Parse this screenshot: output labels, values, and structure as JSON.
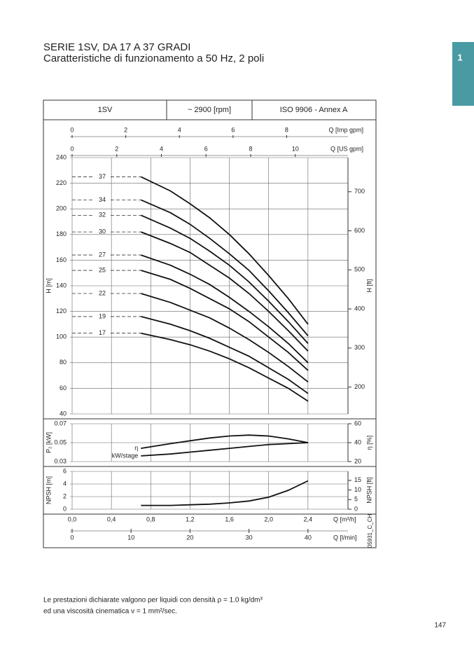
{
  "header": {
    "title": "SERIE 1SV, DA 17 A 37 GRADI",
    "subtitle": "Caratteristiche di funzionamento a 50 Hz, 2 poli"
  },
  "tab": "1",
  "chart_header": [
    "1SV",
    "~ 2900 [rpm]",
    "ISO 9906 - Annex A"
  ],
  "chart_code": "05931_C_CH",
  "chart_data": [
    {
      "type": "line",
      "series_labels": "leader",
      "x": [
        0.7,
        1.0,
        1.2,
        1.4,
        1.6,
        1.8,
        2.0,
        2.2,
        2.4
      ],
      "xlim": [
        0,
        2.8
      ],
      "ylabel": "H [m]",
      "ylim": [
        40,
        240
      ],
      "yticks": [
        40,
        60,
        80,
        100,
        120,
        140,
        160,
        180,
        200,
        220,
        240
      ],
      "y2label": "H [ft]",
      "y2lim": [
        131.2,
        787.4
      ],
      "y2ticks": [
        200,
        300,
        400,
        500,
        600,
        700
      ],
      "top_axes": [
        {
          "label": "Q [Imp gpm]",
          "xlim": [
            0,
            10.26
          ],
          "xticks": [
            0,
            2,
            4,
            6,
            8
          ]
        },
        {
          "label": "Q [US gpm]",
          "xlim": [
            0,
            12.33
          ],
          "xticks": [
            0,
            2,
            4,
            6,
            8,
            10
          ]
        }
      ],
      "series": [
        {
          "name": "37",
          "color": "#111111",
          "values": [
            225,
            214,
            204,
            193,
            180,
            165,
            148,
            130,
            110
          ]
        },
        {
          "name": "34",
          "color": "#111111",
          "values": [
            207,
            197,
            188,
            177,
            165,
            152,
            136,
            119,
            101
          ]
        },
        {
          "name": "32",
          "color": "#111111",
          "values": [
            195,
            185,
            177,
            167,
            156,
            143,
            128,
            112,
            95
          ]
        },
        {
          "name": "30",
          "color": "#111111",
          "values": [
            182,
            173,
            166,
            156,
            146,
            134,
            120,
            105,
            89
          ]
        },
        {
          "name": "27",
          "color": "#111111",
          "values": [
            164,
            156,
            149,
            141,
            131,
            120,
            108,
            95,
            80
          ]
        },
        {
          "name": "25",
          "color": "#111111",
          "values": [
            152,
            145,
            138,
            130,
            122,
            112,
            100,
            88,
            74
          ]
        },
        {
          "name": "22",
          "color": "#111111",
          "values": [
            134,
            127,
            121,
            115,
            107,
            98,
            88,
            77,
            65
          ]
        },
        {
          "name": "19",
          "color": "#111111",
          "values": [
            116,
            110,
            105,
            99,
            92,
            85,
            76,
            67,
            56
          ]
        },
        {
          "name": "17",
          "color": "#111111",
          "values": [
            103,
            98,
            94,
            89,
            83,
            76,
            68,
            60,
            50
          ]
        }
      ]
    },
    {
      "type": "line",
      "series_labels": "start",
      "x": [
        0.7,
        1.0,
        1.2,
        1.4,
        1.6,
        1.8,
        2.0,
        2.2,
        2.4
      ],
      "xlim": [
        0,
        2.8
      ],
      "ylabel": "P₂ [kW]",
      "ylim": [
        0.03,
        0.07
      ],
      "yticks": [
        0.03,
        0.05,
        0.07
      ],
      "y2label": "η [%]",
      "y2lim": [
        20,
        60
      ],
      "y2ticks": [
        20,
        40,
        60
      ],
      "series": [
        {
          "name": "η",
          "color": "#111111",
          "axis": "y2",
          "values": [
            34,
            39,
            42,
            45,
            47,
            48,
            47,
            44,
            40
          ]
        },
        {
          "name": "kW/stage",
          "color": "#111111",
          "values": [
            0.036,
            0.038,
            0.04,
            0.042,
            0.044,
            0.046,
            0.048,
            0.049,
            0.05
          ]
        }
      ]
    },
    {
      "type": "line",
      "x": [
        0.7,
        1.0,
        1.2,
        1.4,
        1.6,
        1.8,
        2.0,
        2.2,
        2.4
      ],
      "xlim": [
        0,
        2.8
      ],
      "xlabel": "Q [m³/h]",
      "xticks": [
        {
          "value": 0,
          "label": "0,0"
        },
        {
          "value": 0.4,
          "label": "0,4"
        },
        {
          "value": 0.8,
          "label": "0,8"
        },
        {
          "value": 1.2,
          "label": "1,2"
        },
        {
          "value": 1.6,
          "label": "1,6"
        },
        {
          "value": 2.0,
          "label": "2,0"
        },
        {
          "value": 2.4,
          "label": "2,4"
        }
      ],
      "ylabel": "NPSH [m]",
      "ylim": [
        0,
        6
      ],
      "yticks": [
        0,
        2,
        4,
        6
      ],
      "y2label": "NPSH [ft]",
      "y2lim": [
        0,
        19.69
      ],
      "y2ticks": [
        0,
        5,
        10,
        15
      ],
      "bottom_axes": [
        {
          "label": "Q [l/min]",
          "xlim": [
            0,
            46.67
          ],
          "xticks": [
            0,
            10,
            20,
            30,
            40
          ]
        }
      ],
      "series": [
        {
          "name": "NPSH",
          "color": "#111111",
          "values": [
            0.6,
            0.6,
            0.7,
            0.8,
            1.0,
            1.3,
            1.9,
            3.0,
            4.5
          ]
        }
      ]
    }
  ],
  "footnote": [
    "Le prestazioni dichiarate valgono per liquidi con densità ρ = 1.0 kg/dm³",
    "ed una viscosità cinematica ν = 1 mm²/sec."
  ],
  "page_number": "147"
}
